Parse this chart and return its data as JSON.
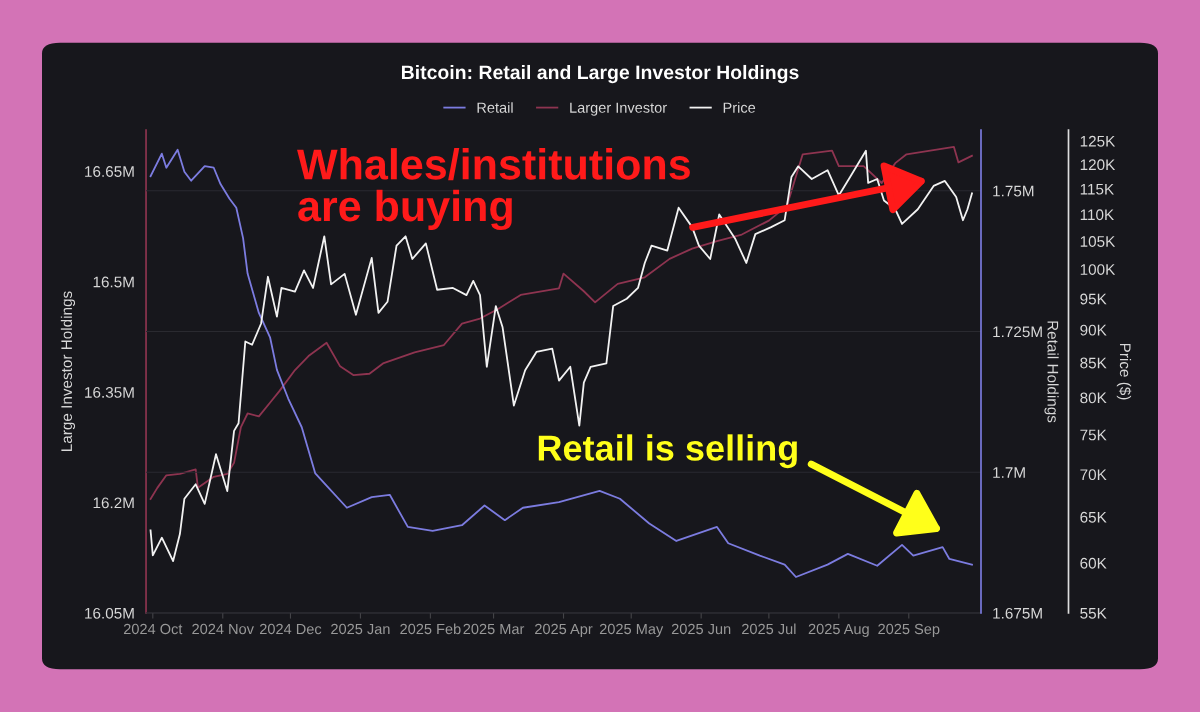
{
  "chart_data": {
    "type": "line",
    "title": "Bitcoin: Retail and Large Investor Holdings",
    "xlim": [
      "2024-09-28",
      "2025-10-03"
    ],
    "xticks": [
      {
        "value": "2024-10-01",
        "label": "2024 Oct"
      },
      {
        "value": "2024-11-01",
        "label": "2024 Nov"
      },
      {
        "value": "2024-12-01",
        "label": "2024 Dec"
      },
      {
        "value": "2025-01-01",
        "label": "2025 Jan"
      },
      {
        "value": "2025-02-01",
        "label": "2025 Feb"
      },
      {
        "value": "2025-03-01",
        "label": "2025 Mar"
      },
      {
        "value": "2025-04-01",
        "label": "2025 Apr"
      },
      {
        "value": "2025-05-01",
        "label": "2025 May"
      },
      {
        "value": "2025-06-01",
        "label": "2025 Jun"
      },
      {
        "value": "2025-07-01",
        "label": "2025 Jul"
      },
      {
        "value": "2025-08-01",
        "label": "2025 Aug"
      },
      {
        "value": "2025-09-01",
        "label": "2025 Sep"
      }
    ],
    "ylabel": "Large Investor Holdings",
    "ylim": [
      16.05,
      16.706
    ],
    "yticks": [
      {
        "value": 16.05,
        "label": "16.05M"
      },
      {
        "value": 16.2,
        "label": "16.2M"
      },
      {
        "value": 16.35,
        "label": "16.35M"
      },
      {
        "value": 16.5,
        "label": "16.5M"
      },
      {
        "value": 16.65,
        "label": "16.65M"
      }
    ],
    "y2label": "Retail Holdings",
    "y2lim": [
      1.675,
      1.7608
    ],
    "y2ticks": [
      {
        "value": 1.675,
        "label": "1.675M"
      },
      {
        "value": 1.7,
        "label": "1.7M"
      },
      {
        "value": 1.725,
        "label": "1.725M"
      },
      {
        "value": 1.75,
        "label": "1.75M"
      }
    ],
    "y3label": "Price ($)",
    "y3lim": [
      55000,
      127400
    ],
    "log": "y3",
    "y3ticks": [
      {
        "value": 55000,
        "label": "55K"
      },
      {
        "value": 60000,
        "label": "60K"
      },
      {
        "value": 65000,
        "label": "65K"
      },
      {
        "value": 70000,
        "label": "70K"
      },
      {
        "value": 75000,
        "label": "75K"
      },
      {
        "value": 80000,
        "label": "80K"
      },
      {
        "value": 85000,
        "label": "85K"
      },
      {
        "value": 90000,
        "label": "90K"
      },
      {
        "value": 95000,
        "label": "95K"
      },
      {
        "value": 100000,
        "label": "100K"
      },
      {
        "value": 105000,
        "label": "105K"
      },
      {
        "value": 110000,
        "label": "110K"
      },
      {
        "value": 115000,
        "label": "115K"
      },
      {
        "value": 120000,
        "label": "120K"
      },
      {
        "value": 125000,
        "label": "125K"
      }
    ],
    "grid": "y2",
    "legend": "top",
    "marker": "none",
    "line_style": "solid",
    "annotations": [
      "Whales/institutions are buying",
      "Retail is selling"
    ],
    "series": [
      {
        "name": "Retail",
        "color": "#7c7ce0",
        "axis": "y2",
        "x": [
          "2024-09-30",
          "2024-10-05",
          "2024-10-07",
          "2024-10-12",
          "2024-10-15",
          "2024-10-18",
          "2024-10-24",
          "2024-10-28",
          "2024-10-31",
          "2024-11-04",
          "2024-11-07",
          "2024-11-10",
          "2024-11-12",
          "2024-11-17",
          "2024-11-22",
          "2024-11-25",
          "2024-11-30",
          "2024-12-06",
          "2024-12-12",
          "2024-12-18",
          "2024-12-26",
          "2025-01-06",
          "2025-01-14",
          "2025-01-22",
          "2025-02-02",
          "2025-02-15",
          "2025-02-25",
          "2025-03-06",
          "2025-03-14",
          "2025-03-30",
          "2025-04-17",
          "2025-04-26",
          "2025-05-09",
          "2025-05-21",
          "2025-06-08",
          "2025-06-13",
          "2025-06-27",
          "2025-07-08",
          "2025-07-13",
          "2025-07-27",
          "2025-08-05",
          "2025-08-18",
          "2025-08-29",
          "2025-09-03",
          "2025-09-16",
          "2025-09-19",
          "2025-09-29"
        ],
        "values": [
          1.7526,
          1.7566,
          1.7541,
          1.7573,
          1.7534,
          1.7518,
          1.7544,
          1.7541,
          1.7512,
          1.7486,
          1.747,
          1.7416,
          1.7353,
          1.7283,
          1.7239,
          1.7182,
          1.7131,
          1.708,
          1.6998,
          1.6972,
          1.6937,
          1.6956,
          1.696,
          1.6903,
          1.6896,
          1.6906,
          1.6941,
          1.6915,
          1.6937,
          1.6947,
          1.6967,
          1.6953,
          1.6909,
          1.6878,
          1.6903,
          1.6874,
          1.6852,
          1.6836,
          1.6814,
          1.6836,
          1.6855,
          1.6834,
          1.6871,
          1.6852,
          1.6867,
          1.6846,
          1.6836
        ]
      },
      {
        "name": "Larger Investor",
        "color": "#8e3450",
        "axis": "y",
        "x": [
          "2024-09-30",
          "2024-10-03",
          "2024-10-07",
          "2024-10-13",
          "2024-10-20",
          "2024-10-21",
          "2024-10-28",
          "2024-11-03",
          "2024-11-06",
          "2024-11-09",
          "2024-11-12",
          "2024-11-17",
          "2024-11-22",
          "2024-11-26",
          "2024-12-03",
          "2024-12-09",
          "2024-12-17",
          "2024-12-23",
          "2024-12-29",
          "2025-01-05",
          "2025-01-11",
          "2025-01-25",
          "2025-02-07",
          "2025-02-15",
          "2025-02-23",
          "2025-03-03",
          "2025-03-13",
          "2025-03-30",
          "2025-04-01",
          "2025-04-10",
          "2025-04-15",
          "2025-04-17",
          "2025-04-25",
          "2025-05-07",
          "2025-05-18",
          "2025-05-28",
          "2025-06-08",
          "2025-06-19",
          "2025-07-01",
          "2025-07-09",
          "2025-07-16",
          "2025-07-29",
          "2025-08-01",
          "2025-08-12",
          "2025-08-20",
          "2025-08-26",
          "2025-08-31",
          "2025-09-21",
          "2025-09-23",
          "2025-09-29"
        ],
        "values": [
          16.205,
          16.22,
          16.237,
          16.239,
          16.245,
          16.22,
          16.235,
          16.239,
          16.254,
          16.302,
          16.321,
          16.317,
          16.336,
          16.351,
          16.38,
          16.399,
          16.417,
          16.385,
          16.373,
          16.375,
          16.389,
          16.404,
          16.414,
          16.443,
          16.45,
          16.463,
          16.482,
          16.491,
          16.511,
          16.487,
          16.472,
          16.477,
          16.497,
          16.506,
          16.531,
          16.545,
          16.555,
          16.564,
          16.583,
          16.603,
          16.673,
          16.678,
          16.657,
          16.657,
          16.634,
          16.661,
          16.673,
          16.683,
          16.662,
          16.671
        ]
      },
      {
        "name": "Price",
        "color": "#f2f2f2",
        "axis": "y3",
        "x": [
          "2024-09-30",
          "2024-10-01",
          "2024-10-05",
          "2024-10-10",
          "2024-10-13",
          "2024-10-15",
          "2024-10-20",
          "2024-10-24",
          "2024-10-29",
          "2024-11-03",
          "2024-11-06",
          "2024-11-08",
          "2024-11-11",
          "2024-11-14",
          "2024-11-18",
          "2024-11-21",
          "2024-11-25",
          "2024-11-27",
          "2024-12-03",
          "2024-12-07",
          "2024-12-11",
          "2024-12-16",
          "2024-12-19",
          "2024-12-25",
          "2024-12-30",
          "2025-01-06",
          "2025-01-09",
          "2025-01-13",
          "2025-01-17",
          "2025-01-21",
          "2025-01-24",
          "2025-01-30",
          "2025-02-04",
          "2025-02-11",
          "2025-02-17",
          "2025-02-20",
          "2025-02-23",
          "2025-02-26",
          "2025-03-02",
          "2025-03-05",
          "2025-03-10",
          "2025-03-15",
          "2025-03-20",
          "2025-03-27",
          "2025-03-30",
          "2025-04-04",
          "2025-04-08",
          "2025-04-10",
          "2025-04-13",
          "2025-04-20",
          "2025-04-23",
          "2025-04-29",
          "2025-05-04",
          "2025-05-07",
          "2025-05-10",
          "2025-05-17",
          "2025-05-22",
          "2025-05-28",
          "2025-05-31",
          "2025-06-05",
          "2025-06-09",
          "2025-06-16",
          "2025-06-21",
          "2025-06-25",
          "2025-07-02",
          "2025-07-08",
          "2025-07-11",
          "2025-07-14",
          "2025-07-20",
          "2025-07-27",
          "2025-08-01",
          "2025-08-06",
          "2025-08-13",
          "2025-08-14",
          "2025-08-18",
          "2025-08-21",
          "2025-08-26",
          "2025-08-29",
          "2025-09-05",
          "2025-09-12",
          "2025-09-17",
          "2025-09-22",
          "2025-09-25",
          "2025-09-27",
          "2025-09-29"
        ],
        "values": [
          63500,
          60800,
          62700,
          60200,
          63100,
          67100,
          68800,
          66500,
          72500,
          68000,
          75500,
          76500,
          88200,
          87700,
          91000,
          98700,
          92100,
          96800,
          96200,
          99800,
          96800,
          105900,
          97400,
          99200,
          92400,
          102000,
          92700,
          94500,
          104200,
          105900,
          101800,
          104600,
          96500,
          96800,
          95600,
          98000,
          95600,
          84400,
          93800,
          90400,
          78900,
          83900,
          86600,
          87100,
          82400,
          84400,
          76200,
          82100,
          84400,
          84900,
          93800,
          95000,
          96800,
          101100,
          104200,
          103300,
          111300,
          107600,
          104200,
          101800,
          110000,
          105500,
          101100,
          106300,
          107600,
          108900,
          117400,
          119600,
          117000,
          118800,
          113700,
          117400,
          122900,
          116200,
          117000,
          112700,
          111000,
          108200,
          111000,
          115600,
          116600,
          113400,
          108900,
          111000,
          114100
        ]
      }
    ]
  }
}
